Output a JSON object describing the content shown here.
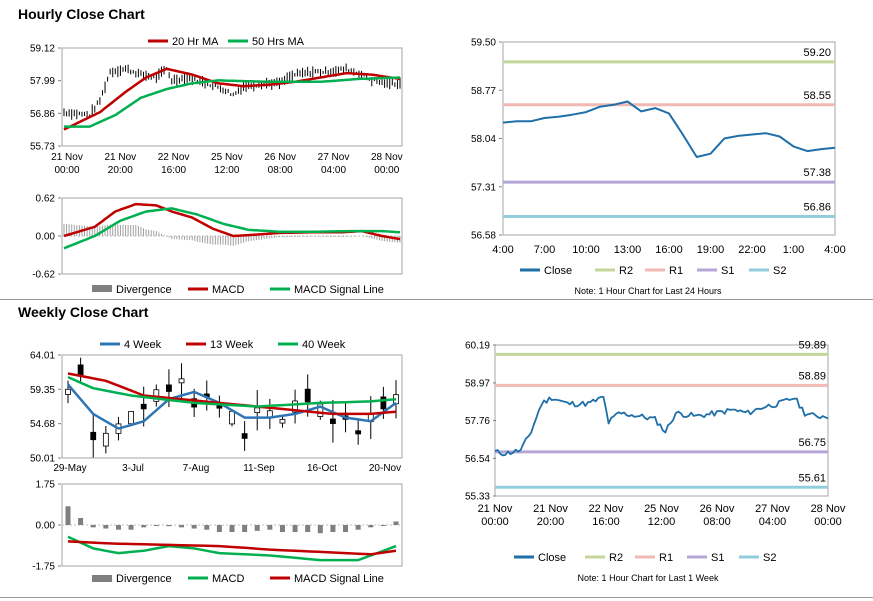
{
  "titles": {
    "hourly": "Hourly Close Chart",
    "weekly": "Weekly Close Chart"
  },
  "colors": {
    "red": "#c00000",
    "green": "#00b050",
    "blue": "#2e75b6",
    "close": "#1f6fa8",
    "r2": "#c4d79b",
    "r1": "#f2b8b4",
    "s1": "#b4a7d6",
    "s2": "#92cddc",
    "gray": "#808080"
  },
  "chart_data": [
    {
      "id": "hourly-price",
      "type": "line",
      "legend": [
        "20 Hr MA",
        "50 Hrs MA"
      ],
      "ylim": [
        55.73,
        59.12
      ],
      "yticks": [
        "59.12",
        "57.99",
        "56.86",
        "55.73"
      ],
      "xticks": [
        [
          "21 Nov",
          "00:00"
        ],
        [
          "21 Nov",
          "20:00"
        ],
        [
          "22 Nov",
          "16:00"
        ],
        [
          "25 Nov",
          "12:00"
        ],
        [
          "26 Nov",
          "08:00"
        ],
        [
          "27 Nov",
          "04:00"
        ],
        [
          "28 Nov",
          "00:00"
        ]
      ],
      "n": 132,
      "price_keys": [
        [
          0,
          56.9
        ],
        [
          10,
          56.8
        ],
        [
          14,
          57.3
        ],
        [
          18,
          58.3
        ],
        [
          24,
          58.4
        ],
        [
          30,
          58.2
        ],
        [
          36,
          58.1
        ],
        [
          40,
          58.4
        ],
        [
          42,
          58.0
        ],
        [
          48,
          58.1
        ],
        [
          56,
          57.9
        ],
        [
          62,
          57.7
        ],
        [
          66,
          57.5
        ],
        [
          70,
          57.8
        ],
        [
          78,
          57.9
        ],
        [
          84,
          57.9
        ],
        [
          90,
          58.2
        ],
        [
          98,
          58.3
        ],
        [
          104,
          58.3
        ],
        [
          110,
          58.4
        ],
        [
          116,
          58.2
        ],
        [
          120,
          58.0
        ],
        [
          126,
          57.9
        ],
        [
          131,
          57.9
        ]
      ],
      "ma20_keys": [
        [
          0,
          56.3
        ],
        [
          14,
          56.9
        ],
        [
          24,
          57.6
        ],
        [
          32,
          58.1
        ],
        [
          40,
          58.4
        ],
        [
          50,
          58.2
        ],
        [
          60,
          57.9
        ],
        [
          70,
          57.8
        ],
        [
          80,
          57.85
        ],
        [
          90,
          57.95
        ],
        [
          100,
          58.1
        ],
        [
          110,
          58.25
        ],
        [
          120,
          58.2
        ],
        [
          131,
          58.05
        ]
      ],
      "ma50_keys": [
        [
          0,
          56.4
        ],
        [
          10,
          56.4
        ],
        [
          20,
          56.8
        ],
        [
          30,
          57.4
        ],
        [
          40,
          57.7
        ],
        [
          50,
          57.9
        ],
        [
          60,
          58.0
        ],
        [
          80,
          57.95
        ],
        [
          100,
          57.95
        ],
        [
          115,
          58.05
        ],
        [
          131,
          58.1
        ]
      ]
    },
    {
      "id": "hourly-macd",
      "type": "bar",
      "legend": [
        "Divergence",
        "MACD",
        "MACD Signal Line"
      ],
      "ylim": [
        -0.62,
        0.62
      ],
      "yticks": [
        "0.62",
        "0.00",
        "-0.62"
      ],
      "n": 132,
      "macd_keys": [
        [
          0,
          0.0
        ],
        [
          12,
          0.15
        ],
        [
          20,
          0.4
        ],
        [
          28,
          0.52
        ],
        [
          36,
          0.5
        ],
        [
          42,
          0.4
        ],
        [
          50,
          0.3
        ],
        [
          58,
          0.12
        ],
        [
          66,
          0.0
        ],
        [
          74,
          0.02
        ],
        [
          84,
          0.05
        ],
        [
          96,
          0.06
        ],
        [
          108,
          0.06
        ],
        [
          116,
          0.08
        ],
        [
          124,
          0.0
        ],
        [
          131,
          -0.05
        ]
      ],
      "signal_keys": [
        [
          0,
          -0.2
        ],
        [
          12,
          0.0
        ],
        [
          22,
          0.25
        ],
        [
          32,
          0.4
        ],
        [
          42,
          0.45
        ],
        [
          52,
          0.35
        ],
        [
          62,
          0.2
        ],
        [
          72,
          0.1
        ],
        [
          84,
          0.07
        ],
        [
          98,
          0.07
        ],
        [
          112,
          0.08
        ],
        [
          124,
          0.08
        ],
        [
          131,
          0.06
        ]
      ]
    },
    {
      "id": "hourly-close-levels",
      "type": "line",
      "ylim": [
        56.58,
        59.5
      ],
      "yticks": [
        "59.50",
        "58.77",
        "58.04",
        "57.31",
        "56.58"
      ],
      "xticks": [
        "4:00",
        "7:00",
        "10:00",
        "13:00",
        "16:00",
        "19:00",
        "22:00",
        "1:00",
        "4:00"
      ],
      "x": [
        0,
        1,
        2,
        3,
        4,
        5,
        6,
        7,
        8,
        9,
        10,
        11,
        12,
        13,
        14,
        15,
        16,
        17,
        18,
        19,
        20,
        21,
        22,
        23,
        24
      ],
      "close": [
        58.28,
        58.3,
        58.3,
        58.35,
        58.37,
        58.4,
        58.44,
        58.52,
        58.55,
        58.6,
        58.45,
        58.5,
        58.42,
        58.1,
        57.76,
        57.81,
        58.04,
        58.08,
        58.1,
        58.12,
        58.07,
        57.92,
        57.85,
        57.88,
        57.9
      ],
      "levels": [
        {
          "name": "R2",
          "value": 59.2,
          "label": "59.20"
        },
        {
          "name": "R1",
          "value": 58.55,
          "label": "58.55"
        },
        {
          "name": "S1",
          "value": 57.38,
          "label": "57.38"
        },
        {
          "name": "S2",
          "value": 56.86,
          "label": "56.86"
        }
      ],
      "legend": [
        "Close",
        "R2",
        "R1",
        "S1",
        "S2"
      ],
      "note": "Note: 1 Hour Chart for Last 24 Hours"
    },
    {
      "id": "weekly-price",
      "type": "line",
      "legend": [
        "4 Week",
        "13 Week",
        "40 Week"
      ],
      "ylim": [
        50.01,
        64.01
      ],
      "yticks": [
        "64.01",
        "59.35",
        "54.68",
        "50.01"
      ],
      "xticks": [
        "29-May",
        "3-Jul",
        "7-Aug",
        "11-Sep",
        "16-Oct",
        "20-Nov"
      ],
      "n": 27,
      "close_keys": [
        [
          0,
          59.0
        ],
        [
          1,
          62.0
        ],
        [
          2,
          53.0
        ],
        [
          3,
          52.5
        ],
        [
          4,
          54.0
        ],
        [
          5,
          55.5
        ],
        [
          6,
          57.0
        ],
        [
          7,
          58.5
        ],
        [
          8,
          59.5
        ],
        [
          9,
          60.5
        ],
        [
          10,
          57.5
        ],
        [
          11,
          58.5
        ],
        [
          12,
          57.0
        ],
        [
          13,
          55.5
        ],
        [
          14,
          53.0
        ],
        [
          15,
          56.5
        ],
        [
          16,
          56.0
        ],
        [
          17,
          55.0
        ],
        [
          18,
          57.0
        ],
        [
          19,
          58.5
        ],
        [
          20,
          56.5
        ],
        [
          21,
          55.0
        ],
        [
          22,
          55.5
        ],
        [
          23,
          53.5
        ],
        [
          24,
          55.5
        ],
        [
          25,
          57.5
        ],
        [
          26,
          58.0
        ]
      ],
      "wk4_keys": [
        [
          0,
          60.0
        ],
        [
          2,
          56.0
        ],
        [
          4,
          54.0
        ],
        [
          6,
          55.0
        ],
        [
          8,
          58.0
        ],
        [
          10,
          59.0
        ],
        [
          12,
          57.5
        ],
        [
          14,
          55.5
        ],
        [
          16,
          55.5
        ],
        [
          18,
          56.0
        ],
        [
          20,
          57.0
        ],
        [
          22,
          55.5
        ],
        [
          24,
          55.0
        ],
        [
          26,
          57.5
        ]
      ],
      "wk13_keys": [
        [
          0,
          61.5
        ],
        [
          3,
          60.5
        ],
        [
          6,
          58.5
        ],
        [
          9,
          58.0
        ],
        [
          12,
          57.5
        ],
        [
          15,
          57.0
        ],
        [
          18,
          56.5
        ],
        [
          21,
          56.0
        ],
        [
          24,
          56.0
        ],
        [
          26,
          56.3
        ]
      ],
      "wk40_keys": [
        [
          0,
          61.0
        ],
        [
          2,
          59.5
        ],
        [
          5,
          58.5
        ],
        [
          10,
          57.5
        ],
        [
          15,
          57.0
        ],
        [
          20,
          57.5
        ],
        [
          24,
          57.7
        ],
        [
          26,
          58.0
        ]
      ]
    },
    {
      "id": "weekly-macd",
      "type": "bar",
      "legend": [
        "Divergence",
        "MACD",
        "MACD Signal Line"
      ],
      "ylim": [
        -1.75,
        1.75
      ],
      "yticks": [
        "1.75",
        "0.00",
        "-1.75"
      ],
      "n": 27,
      "divergence": [
        0.8,
        0.3,
        -0.1,
        -0.15,
        -0.2,
        -0.2,
        -0.1,
        0.0,
        -0.05,
        -0.1,
        -0.15,
        -0.2,
        -0.3,
        -0.3,
        -0.3,
        -0.25,
        -0.2,
        -0.3,
        -0.3,
        -0.3,
        -0.35,
        -0.3,
        -0.3,
        -0.2,
        -0.1,
        0.0,
        0.15
      ],
      "macd_keys": [
        [
          0,
          -0.5
        ],
        [
          2,
          -1.0
        ],
        [
          4,
          -1.2
        ],
        [
          6,
          -1.1
        ],
        [
          8,
          -0.9
        ],
        [
          10,
          -1.0
        ],
        [
          12,
          -1.2
        ],
        [
          16,
          -1.3
        ],
        [
          20,
          -1.5
        ],
        [
          23,
          -1.5
        ],
        [
          26,
          -0.9
        ]
      ],
      "signal_keys": [
        [
          0,
          -0.7
        ],
        [
          4,
          -0.8
        ],
        [
          8,
          -0.85
        ],
        [
          12,
          -0.9
        ],
        [
          16,
          -1.05
        ],
        [
          20,
          -1.15
        ],
        [
          24,
          -1.25
        ],
        [
          26,
          -1.1
        ]
      ]
    },
    {
      "id": "weekly-close-levels",
      "type": "line",
      "ylim": [
        55.33,
        60.19
      ],
      "yticks": [
        "60.19",
        "58.97",
        "57.76",
        "56.54",
        "55.33"
      ],
      "xticks": [
        [
          "21 Nov",
          "00:00"
        ],
        [
          "21 Nov",
          "20:00"
        ],
        [
          "22 Nov",
          "16:00"
        ],
        [
          "25 Nov",
          "12:00"
        ],
        [
          "26 Nov",
          "08:00"
        ],
        [
          "27 Nov",
          "04:00"
        ],
        [
          "28 Nov",
          "00:00"
        ]
      ],
      "n": 130,
      "close_keys": [
        [
          0,
          56.75
        ],
        [
          4,
          56.7
        ],
        [
          10,
          56.8
        ],
        [
          14,
          57.4
        ],
        [
          18,
          58.3
        ],
        [
          22,
          58.5
        ],
        [
          28,
          58.3
        ],
        [
          36,
          58.3
        ],
        [
          42,
          58.5
        ],
        [
          44,
          57.7
        ],
        [
          48,
          58.0
        ],
        [
          56,
          57.9
        ],
        [
          62,
          57.8
        ],
        [
          66,
          57.4
        ],
        [
          70,
          58.0
        ],
        [
          78,
          57.9
        ],
        [
          86,
          58.0
        ],
        [
          92,
          58.1
        ],
        [
          98,
          58.0
        ],
        [
          104,
          58.2
        ],
        [
          110,
          58.3
        ],
        [
          116,
          58.5
        ],
        [
          120,
          58.0
        ],
        [
          124,
          57.9
        ],
        [
          129,
          57.9
        ]
      ],
      "levels": [
        {
          "name": "R2",
          "value": 59.89,
          "label": "59.89"
        },
        {
          "name": "R1",
          "value": 58.89,
          "label": "58.89"
        },
        {
          "name": "S1",
          "value": 56.75,
          "label": "56.75"
        },
        {
          "name": "S2",
          "value": 55.61,
          "label": "55.61"
        }
      ],
      "legend": [
        "Close",
        "R2",
        "R1",
        "S1",
        "S2"
      ],
      "note": "Note: 1 Hour Chart for Last 1 Week"
    }
  ]
}
